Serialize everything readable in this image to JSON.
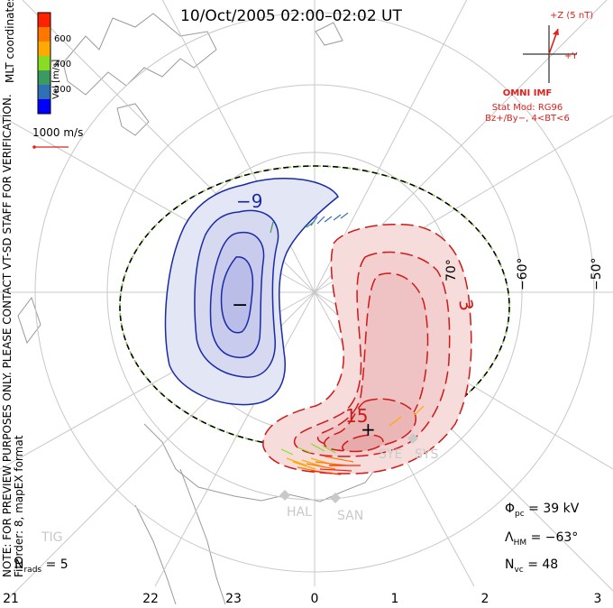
{
  "title": "10/Oct/2005 02:00–02:02 UT",
  "note_lines": [
    "NOTE: FOR PREVIEW PURPOSES ONLY. PLEASE CONTACT VT-SD STAFF FOR VERIFICATION.",
    "FitOrder: 8, mapEX format"
  ],
  "coord_label": "MLT coordinates",
  "velocity_scale": {
    "unit_label": "Vel [m/s]",
    "ticks": [
      "600",
      "400",
      "200"
    ],
    "colors": [
      "#0000ff",
      "#2f6fb5",
      "#3a9a60",
      "#88dd22",
      "#ffaa00",
      "#ff7700",
      "#ff2200"
    ]
  },
  "reference_vector": {
    "label": "1000 m/s",
    "color": "#e0201c"
  },
  "imf": {
    "z_label": "+Z (5 nT)",
    "y_label": "+Y",
    "source_label": "OMNI IMF",
    "stat_model": "Stat Mod: RG96",
    "stat_condition": "Bz+/By−, 4<BT<6",
    "color": "#e0201c"
  },
  "mlt_ticks": [
    "21",
    "22",
    "23",
    "0",
    "1",
    "2",
    "3"
  ],
  "lat_labels": [
    "70°",
    "−60°",
    "−50°"
  ],
  "contours": {
    "negative_label": "−9",
    "positive_labels": [
      "3",
      "15"
    ],
    "min_marker": "−",
    "max_marker": "+",
    "negative_color": "#1a2aa8",
    "positive_color": "#d01818"
  },
  "sites": [
    "HAL",
    "SAN",
    "TIG",
    "SYE",
    "SYS"
  ],
  "stats": {
    "phi_pc": {
      "symbol": "Φ",
      "sub": "pc",
      "value": "= 39 kV"
    },
    "lambda_hm": {
      "symbol": "Λ",
      "sub": "HM",
      "value": "= −63°"
    },
    "n_vc": {
      "symbol": "N",
      "sub": "vc",
      "value": "= 48"
    }
  },
  "n_rads": {
    "symbol": "N",
    "sub": "rads",
    "value": "= 5"
  }
}
